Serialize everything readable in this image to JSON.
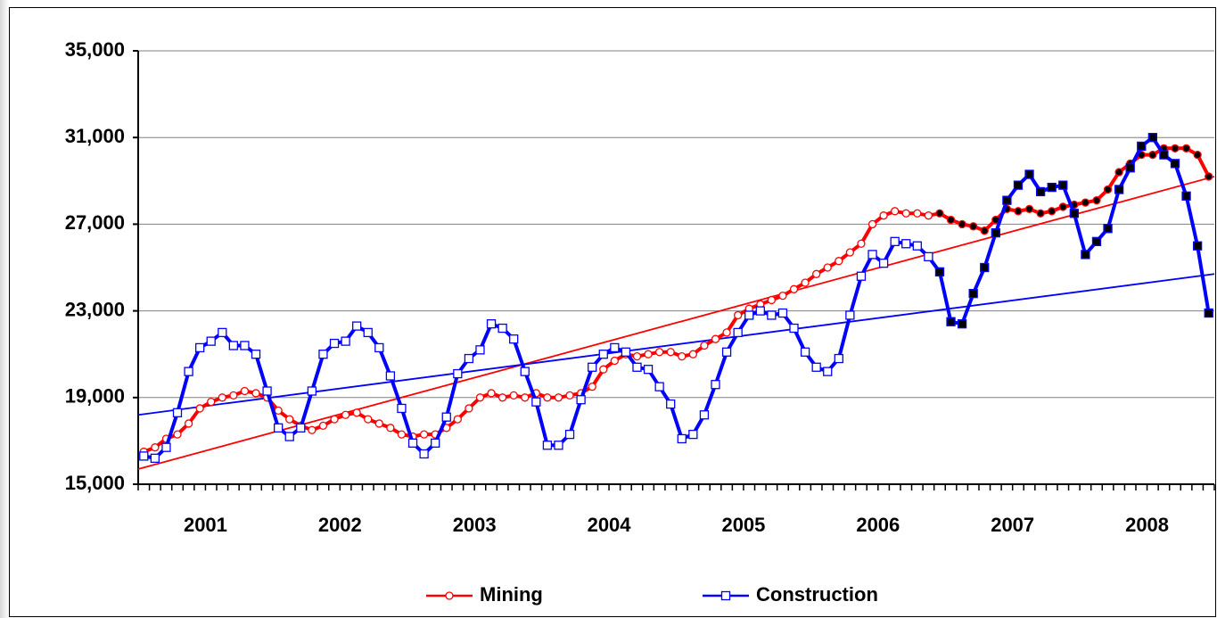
{
  "chart_data": {
    "type": "line",
    "categories": [
      "2001",
      "2002",
      "2003",
      "2004",
      "2005",
      "2006",
      "2007",
      "2008"
    ],
    "ylim": [
      15000,
      35000
    ],
    "yticks": [
      {
        "value": 15000,
        "label": "15,000"
      },
      {
        "value": 19000,
        "label": "19,000"
      },
      {
        "value": 23000,
        "label": "23,000"
      },
      {
        "value": 27000,
        "label": "27,000"
      },
      {
        "value": 31000,
        "label": "31,000"
      },
      {
        "value": 35000,
        "label": "35,000"
      }
    ],
    "grid": true,
    "legend": "bottom",
    "filled_markers_from": [
      5,
      11
    ],
    "series": [
      {
        "name": "Mining",
        "color": "#ff0000",
        "marker": "circle",
        "trend": [
          15700,
          29200
        ],
        "values": [
          [
            16500,
            16700,
            17100,
            17300,
            17800,
            18500,
            18800,
            19000,
            19100,
            19300,
            19200,
            19000
          ],
          [
            18400,
            18000,
            17700,
            17500,
            17700,
            18000,
            18200,
            18300,
            18000,
            17800,
            17600,
            17300
          ],
          [
            17200,
            17300,
            17300,
            17600,
            18000,
            18500,
            19000,
            19200,
            19000,
            19100,
            19000,
            19200
          ],
          [
            19000,
            19000,
            19100,
            19200,
            19500,
            20300,
            20700,
            21000,
            20900,
            21000,
            21100,
            21100
          ],
          [
            20900,
            21000,
            21400,
            21700,
            22000,
            22800,
            23100,
            23300,
            23500,
            23700,
            24000,
            24300
          ],
          [
            24700,
            25000,
            25300,
            25700,
            26100,
            27000,
            27400,
            27600,
            27500,
            27500,
            27400,
            27500
          ],
          [
            27200,
            27000,
            26900,
            26700,
            27200,
            27700,
            27600,
            27700,
            27500,
            27600,
            27800,
            27900
          ],
          [
            28000,
            28100,
            28600,
            29400,
            29800,
            30200,
            30200,
            30500,
            30500,
            30500,
            30200,
            29200
          ]
        ]
      },
      {
        "name": "Construction",
        "color": "#0000ff",
        "marker": "square",
        "trend": [
          18200,
          24700
        ],
        "values": [
          [
            16300,
            16200,
            16700,
            18300,
            20200,
            21300,
            21600,
            22000,
            21400,
            21400,
            21000,
            19300
          ],
          [
            17600,
            17200,
            17600,
            19300,
            21000,
            21500,
            21600,
            22300,
            22000,
            21300,
            20000,
            18500
          ],
          [
            16900,
            16400,
            16900,
            18100,
            20100,
            20800,
            21200,
            22400,
            22200,
            21700,
            20200,
            18800
          ],
          [
            16800,
            16800,
            17300,
            18900,
            20400,
            21000,
            21300,
            21100,
            20400,
            20300,
            19500,
            18700
          ],
          [
            17100,
            17300,
            18200,
            19600,
            21100,
            22000,
            22800,
            23000,
            22800,
            22900,
            22200,
            21100
          ],
          [
            20400,
            20200,
            20800,
            22800,
            24600,
            25600,
            25200,
            26200,
            26100,
            26000,
            25500,
            24800
          ],
          [
            22500,
            22400,
            23800,
            25000,
            26600,
            28100,
            28800,
            29300,
            28500,
            28700,
            28800,
            27500
          ],
          [
            25600,
            26200,
            26800,
            28600,
            29600,
            30600,
            31000,
            30200,
            29800,
            28300,
            26000,
            22900
          ]
        ]
      }
    ]
  }
}
